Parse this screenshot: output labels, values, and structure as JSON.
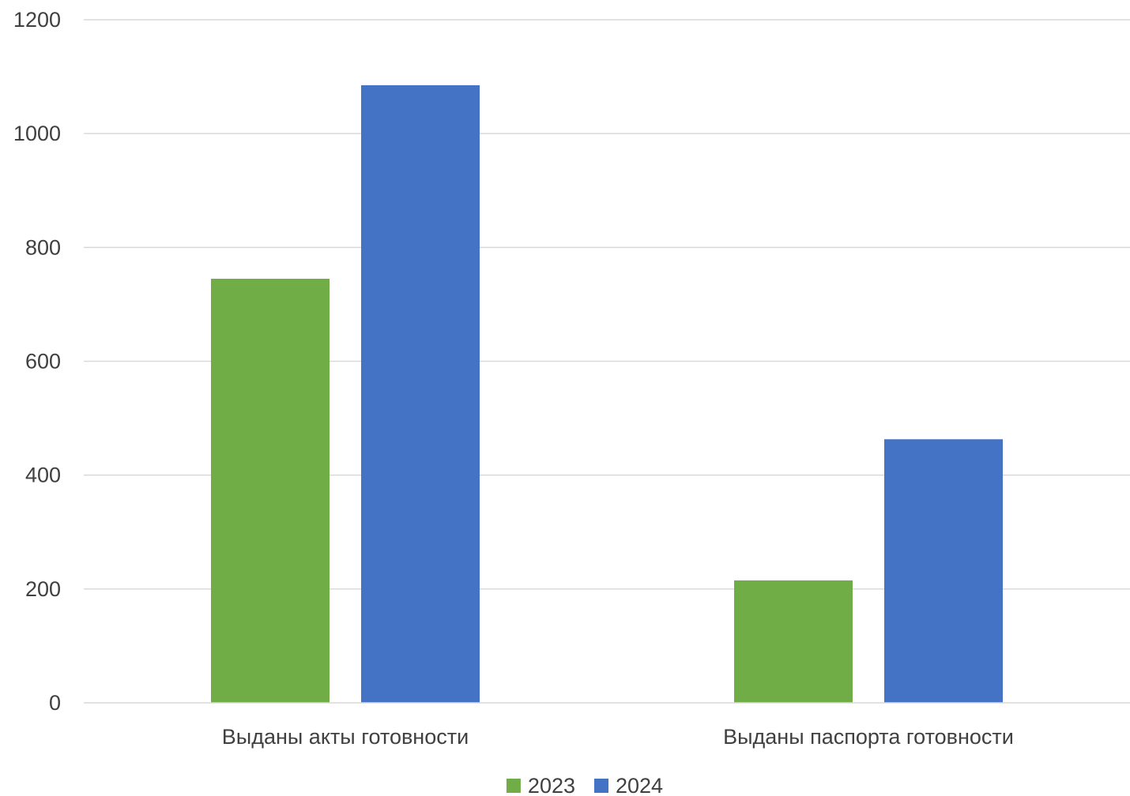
{
  "chart_data": {
    "type": "bar",
    "title": "",
    "xlabel": "",
    "ylabel": "",
    "categories": [
      "Выданы акты готовности",
      "Выданы паспорта готовности"
    ],
    "series": [
      {
        "name": "2023",
        "values": [
          745,
          215
        ],
        "color": "#70AD47"
      },
      {
        "name": "2024",
        "values": [
          1085,
          463
        ],
        "color": "#4472C4"
      }
    ],
    "ylim": [
      0,
      1200
    ],
    "yticks": [
      0,
      200,
      400,
      600,
      800,
      1000,
      1200
    ],
    "grid": true,
    "legend_position": "bottom"
  }
}
